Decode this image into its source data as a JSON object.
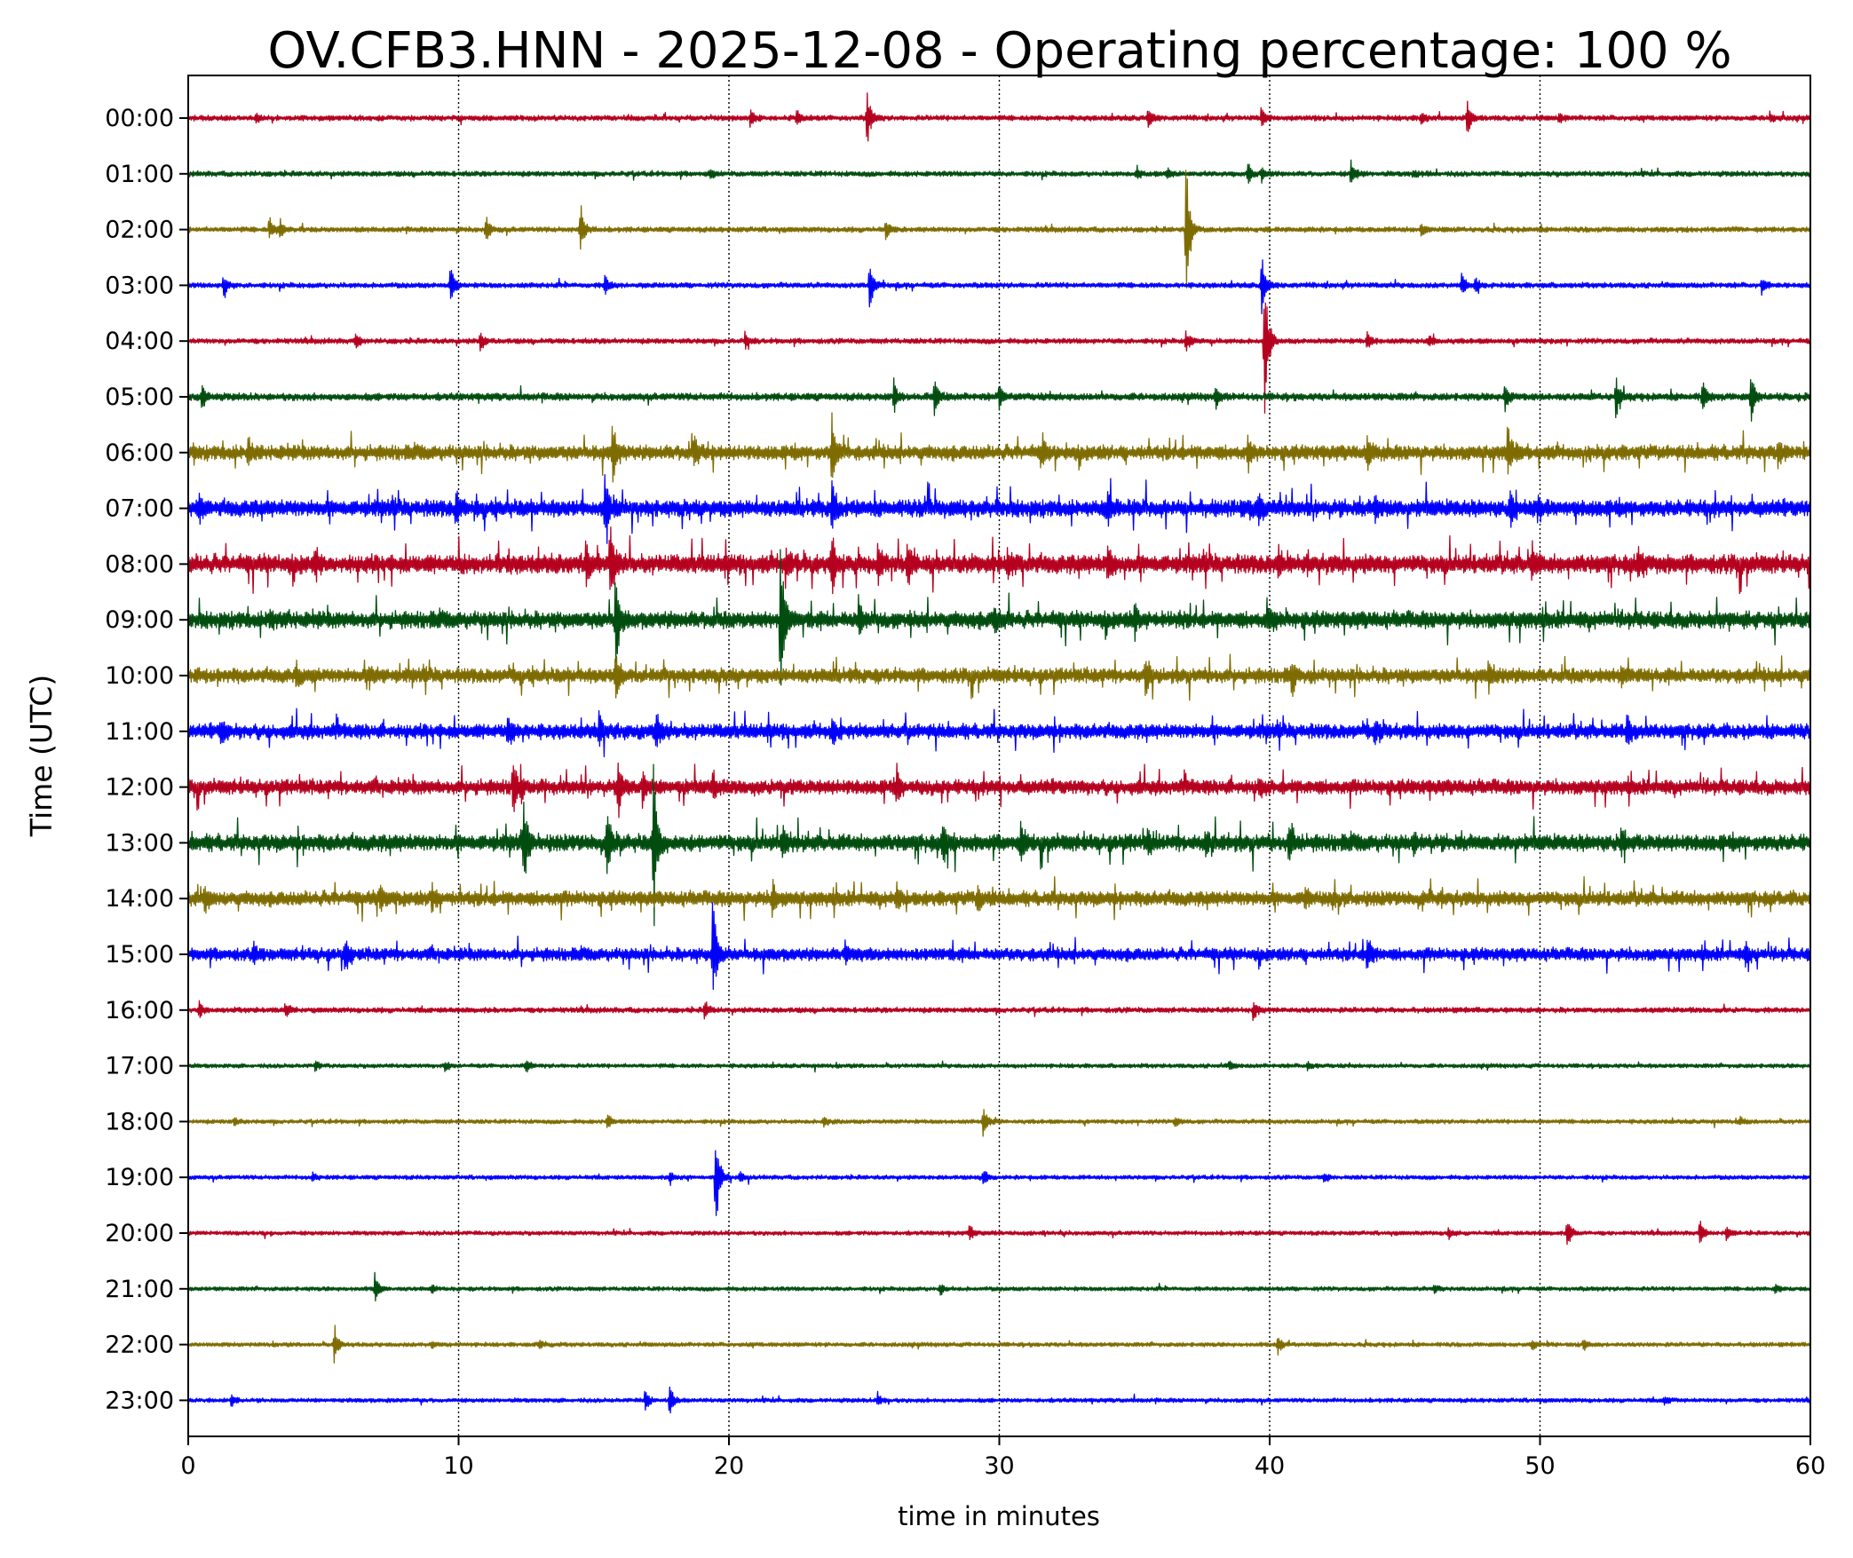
{
  "chart_data": {
    "type": "line",
    "title": "OV.CFB3.HNN - 2025-12-08 - Operating percentage: 100 %",
    "xlabel": "time in minutes",
    "ylabel": "Time (UTC)",
    "xlim": [
      0,
      60
    ],
    "x_ticks": [
      "0",
      "10",
      "20",
      "30",
      "40",
      "50",
      "60"
    ],
    "x_gridlines": [
      10,
      20,
      30,
      40,
      50
    ],
    "grid": "vertical dotted at major x ticks",
    "legend": "none",
    "trace_color_cycle": [
      "#b5001f",
      "#004d0f",
      "#7f6c00",
      "#0000ff"
    ],
    "rows": [
      {
        "label": "00:00",
        "amp": 0.25,
        "events": [
          {
            "t": 2.5,
            "a": 0.5
          },
          {
            "t": 20.8,
            "a": 0.9
          },
          {
            "t": 22.5,
            "a": 0.9
          },
          {
            "t": 25.1,
            "a": 2.7
          },
          {
            "t": 35.5,
            "a": 1.2
          },
          {
            "t": 39.7,
            "a": 1.0
          },
          {
            "t": 45.6,
            "a": 0.7
          },
          {
            "t": 47.3,
            "a": 1.8
          },
          {
            "t": 50.7,
            "a": 0.5
          },
          {
            "t": 58.5,
            "a": 0.5
          }
        ]
      },
      {
        "label": "01:00",
        "amp": 0.25,
        "events": [
          {
            "t": 19.3,
            "a": 0.4
          },
          {
            "t": 35.1,
            "a": 0.6
          },
          {
            "t": 36.2,
            "a": 0.5
          },
          {
            "t": 39.2,
            "a": 1.0
          },
          {
            "t": 39.7,
            "a": 0.8
          },
          {
            "t": 43.0,
            "a": 1.3
          },
          {
            "t": 45.3,
            "a": 0.4
          }
        ]
      },
      {
        "label": "02:00",
        "amp": 0.25,
        "events": [
          {
            "t": 3.0,
            "a": 1.2
          },
          {
            "t": 3.4,
            "a": 1.0
          },
          {
            "t": 11.0,
            "a": 1.3
          },
          {
            "t": 14.5,
            "a": 2.6
          },
          {
            "t": 25.8,
            "a": 0.9
          },
          {
            "t": 36.9,
            "a": 8.0
          },
          {
            "t": 45.6,
            "a": 0.8
          }
        ]
      },
      {
        "label": "03:00",
        "amp": 0.25,
        "events": [
          {
            "t": 1.3,
            "a": 1.4
          },
          {
            "t": 9.7,
            "a": 2.1
          },
          {
            "t": 15.4,
            "a": 1.0
          },
          {
            "t": 25.2,
            "a": 2.7
          },
          {
            "t": 39.7,
            "a": 3.4
          },
          {
            "t": 47.1,
            "a": 1.2
          },
          {
            "t": 47.6,
            "a": 0.9
          },
          {
            "t": 58.2,
            "a": 0.9
          }
        ]
      },
      {
        "label": "04:00",
        "amp": 0.25,
        "events": [
          {
            "t": 6.2,
            "a": 0.7
          },
          {
            "t": 10.8,
            "a": 1.0
          },
          {
            "t": 20.6,
            "a": 0.7
          },
          {
            "t": 36.9,
            "a": 1.0
          },
          {
            "t": 39.8,
            "a": 8.0
          },
          {
            "t": 43.6,
            "a": 0.9
          },
          {
            "t": 45.9,
            "a": 0.5
          }
        ]
      },
      {
        "label": "05:00",
        "amp": 0.35,
        "events": [
          {
            "t": 0.5,
            "a": 1.4
          },
          {
            "t": 26.1,
            "a": 1.5
          },
          {
            "t": 27.6,
            "a": 1.8
          },
          {
            "t": 30.0,
            "a": 1.3
          },
          {
            "t": 38.0,
            "a": 0.9
          },
          {
            "t": 48.7,
            "a": 1.4
          },
          {
            "t": 52.8,
            "a": 2.2
          },
          {
            "t": 56.0,
            "a": 1.5
          },
          {
            "t": 57.8,
            "a": 2.4
          }
        ]
      },
      {
        "label": "06:00",
        "amp": 0.7,
        "events": [
          {
            "t": 2.2,
            "a": 1.3
          },
          {
            "t": 15.7,
            "a": 2.8
          },
          {
            "t": 18.7,
            "a": 1.3
          },
          {
            "t": 23.8,
            "a": 4.0
          },
          {
            "t": 31.6,
            "a": 1.5
          },
          {
            "t": 39.2,
            "a": 1.5
          },
          {
            "t": 43.6,
            "a": 1.7
          },
          {
            "t": 48.8,
            "a": 2.7
          },
          {
            "t": 58.8,
            "a": 1.2
          }
        ]
      },
      {
        "label": "07:00",
        "amp": 0.8,
        "events": [
          {
            "t": 0.4,
            "a": 1.0
          },
          {
            "t": 9.9,
            "a": 1.8
          },
          {
            "t": 15.4,
            "a": 2.9
          },
          {
            "t": 23.8,
            "a": 2.5
          },
          {
            "t": 34.0,
            "a": 1.8
          },
          {
            "t": 39.6,
            "a": 1.4
          },
          {
            "t": 43.9,
            "a": 1.2
          },
          {
            "t": 48.9,
            "a": 1.8
          },
          {
            "t": 49.9,
            "a": 1.3
          }
        ]
      },
      {
        "label": "08:00",
        "amp": 0.9,
        "events": [
          {
            "t": 4.7,
            "a": 1.2
          },
          {
            "t": 14.7,
            "a": 1.7
          },
          {
            "t": 15.6,
            "a": 3.7
          },
          {
            "t": 22.1,
            "a": 1.9
          },
          {
            "t": 23.8,
            "a": 2.8
          },
          {
            "t": 25.5,
            "a": 1.8
          },
          {
            "t": 26.6,
            "a": 1.9
          },
          {
            "t": 30.3,
            "a": 1.2
          },
          {
            "t": 34.0,
            "a": 1.8
          },
          {
            "t": 40.3,
            "a": 1.5
          },
          {
            "t": 49.7,
            "a": 1.6
          },
          {
            "t": 53.6,
            "a": 1.2
          }
        ]
      },
      {
        "label": "09:00",
        "amp": 0.8,
        "events": [
          {
            "t": 3.0,
            "a": 1.0
          },
          {
            "t": 15.8,
            "a": 4.5
          },
          {
            "t": 21.9,
            "a": 8.6
          },
          {
            "t": 24.8,
            "a": 2.0
          },
          {
            "t": 29.8,
            "a": 1.3
          },
          {
            "t": 35.0,
            "a": 1.5
          },
          {
            "t": 39.9,
            "a": 1.5
          },
          {
            "t": 60.0,
            "a": 1.2
          }
        ]
      },
      {
        "label": "10:00",
        "amp": 0.7,
        "events": [
          {
            "t": 4.0,
            "a": 1.0
          },
          {
            "t": 6.7,
            "a": 0.9
          },
          {
            "t": 15.8,
            "a": 2.9
          },
          {
            "t": 35.4,
            "a": 1.5
          },
          {
            "t": 40.8,
            "a": 1.1
          },
          {
            "t": 48.1,
            "a": 1.3
          },
          {
            "t": 53.0,
            "a": 1.2
          }
        ]
      },
      {
        "label": "11:00",
        "amp": 0.7,
        "events": [
          {
            "t": 1.2,
            "a": 1.0
          },
          {
            "t": 11.8,
            "a": 1.4
          },
          {
            "t": 15.2,
            "a": 1.4
          },
          {
            "t": 17.3,
            "a": 1.5
          },
          {
            "t": 23.8,
            "a": 1.4
          },
          {
            "t": 43.9,
            "a": 1.2
          },
          {
            "t": 53.2,
            "a": 1.5
          }
        ]
      },
      {
        "label": "12:00",
        "amp": 0.7,
        "events": [
          {
            "t": 12.0,
            "a": 2.5
          },
          {
            "t": 15.9,
            "a": 2.8
          },
          {
            "t": 16.8,
            "a": 1.6
          },
          {
            "t": 19.4,
            "a": 1.3
          },
          {
            "t": 26.2,
            "a": 1.5
          },
          {
            "t": 39.6,
            "a": 1.0
          }
        ]
      },
      {
        "label": "13:00",
        "amp": 0.8,
        "events": [
          {
            "t": 12.4,
            "a": 4.0
          },
          {
            "t": 15.5,
            "a": 3.0
          },
          {
            "t": 17.2,
            "a": 8.7
          },
          {
            "t": 22.0,
            "a": 1.5
          },
          {
            "t": 27.9,
            "a": 2.6
          },
          {
            "t": 30.8,
            "a": 1.5
          },
          {
            "t": 35.5,
            "a": 1.1
          },
          {
            "t": 37.6,
            "a": 0.9
          },
          {
            "t": 40.7,
            "a": 1.4
          },
          {
            "t": 45.3,
            "a": 1.0
          },
          {
            "t": 53.0,
            "a": 1.4
          }
        ]
      },
      {
        "label": "14:00",
        "amp": 0.7,
        "events": [
          {
            "t": 0.6,
            "a": 1.0
          },
          {
            "t": 7.1,
            "a": 1.3
          },
          {
            "t": 9.0,
            "a": 1.3
          },
          {
            "t": 21.6,
            "a": 1.5
          },
          {
            "t": 26.2,
            "a": 1.3
          },
          {
            "t": 29.2,
            "a": 1.0
          },
          {
            "t": 41.3,
            "a": 1.2
          }
        ]
      },
      {
        "label": "15:00",
        "amp": 0.6,
        "events": [
          {
            "t": 2.4,
            "a": 0.8
          },
          {
            "t": 5.8,
            "a": 1.4
          },
          {
            "t": 19.4,
            "a": 6.2
          },
          {
            "t": 24.3,
            "a": 0.9
          },
          {
            "t": 43.6,
            "a": 1.9
          },
          {
            "t": 57.6,
            "a": 1.2
          }
        ]
      },
      {
        "label": "16:00",
        "amp": 0.25,
        "events": [
          {
            "t": 0.4,
            "a": 0.9
          },
          {
            "t": 3.6,
            "a": 0.9
          },
          {
            "t": 19.1,
            "a": 0.9
          },
          {
            "t": 39.4,
            "a": 1.0
          }
        ]
      },
      {
        "label": "17:00",
        "amp": 0.2,
        "events": [
          {
            "t": 4.7,
            "a": 0.5
          },
          {
            "t": 9.5,
            "a": 0.5
          },
          {
            "t": 12.5,
            "a": 0.7
          },
          {
            "t": 38.5,
            "a": 0.4
          },
          {
            "t": 41.4,
            "a": 0.5
          }
        ]
      },
      {
        "label": "18:00",
        "amp": 0.2,
        "events": [
          {
            "t": 1.7,
            "a": 0.5
          },
          {
            "t": 15.5,
            "a": 0.8
          },
          {
            "t": 23.5,
            "a": 0.6
          },
          {
            "t": 29.4,
            "a": 1.9
          },
          {
            "t": 36.5,
            "a": 0.5
          },
          {
            "t": 57.4,
            "a": 0.4
          }
        ]
      },
      {
        "label": "19:00",
        "amp": 0.2,
        "events": [
          {
            "t": 4.6,
            "a": 0.5
          },
          {
            "t": 17.8,
            "a": 0.8
          },
          {
            "t": 19.5,
            "a": 5.7
          },
          {
            "t": 20.4,
            "a": 0.6
          },
          {
            "t": 29.4,
            "a": 1.0
          },
          {
            "t": 42.0,
            "a": 0.4
          }
        ]
      },
      {
        "label": "20:00",
        "amp": 0.2,
        "events": [
          {
            "t": 28.9,
            "a": 0.9
          },
          {
            "t": 46.6,
            "a": 0.6
          },
          {
            "t": 51.0,
            "a": 1.6
          },
          {
            "t": 55.9,
            "a": 1.3
          },
          {
            "t": 56.9,
            "a": 0.9
          }
        ]
      },
      {
        "label": "21:00",
        "amp": 0.2,
        "events": [
          {
            "t": 6.9,
            "a": 1.5
          },
          {
            "t": 9.0,
            "a": 0.4
          },
          {
            "t": 27.8,
            "a": 0.6
          },
          {
            "t": 46.1,
            "a": 0.4
          },
          {
            "t": 58.7,
            "a": 0.6
          }
        ]
      },
      {
        "label": "22:00",
        "amp": 0.2,
        "events": [
          {
            "t": 5.4,
            "a": 1.8
          },
          {
            "t": 9.0,
            "a": 0.4
          },
          {
            "t": 13.0,
            "a": 0.5
          },
          {
            "t": 40.3,
            "a": 1.0
          },
          {
            "t": 49.7,
            "a": 0.5
          },
          {
            "t": 51.6,
            "a": 0.6
          }
        ]
      },
      {
        "label": "23:00",
        "amp": 0.2,
        "events": [
          {
            "t": 1.6,
            "a": 0.7
          },
          {
            "t": 16.9,
            "a": 1.2
          },
          {
            "t": 17.8,
            "a": 1.8
          },
          {
            "t": 25.5,
            "a": 0.6
          },
          {
            "t": 54.6,
            "a": 0.4
          }
        ]
      }
    ]
  }
}
